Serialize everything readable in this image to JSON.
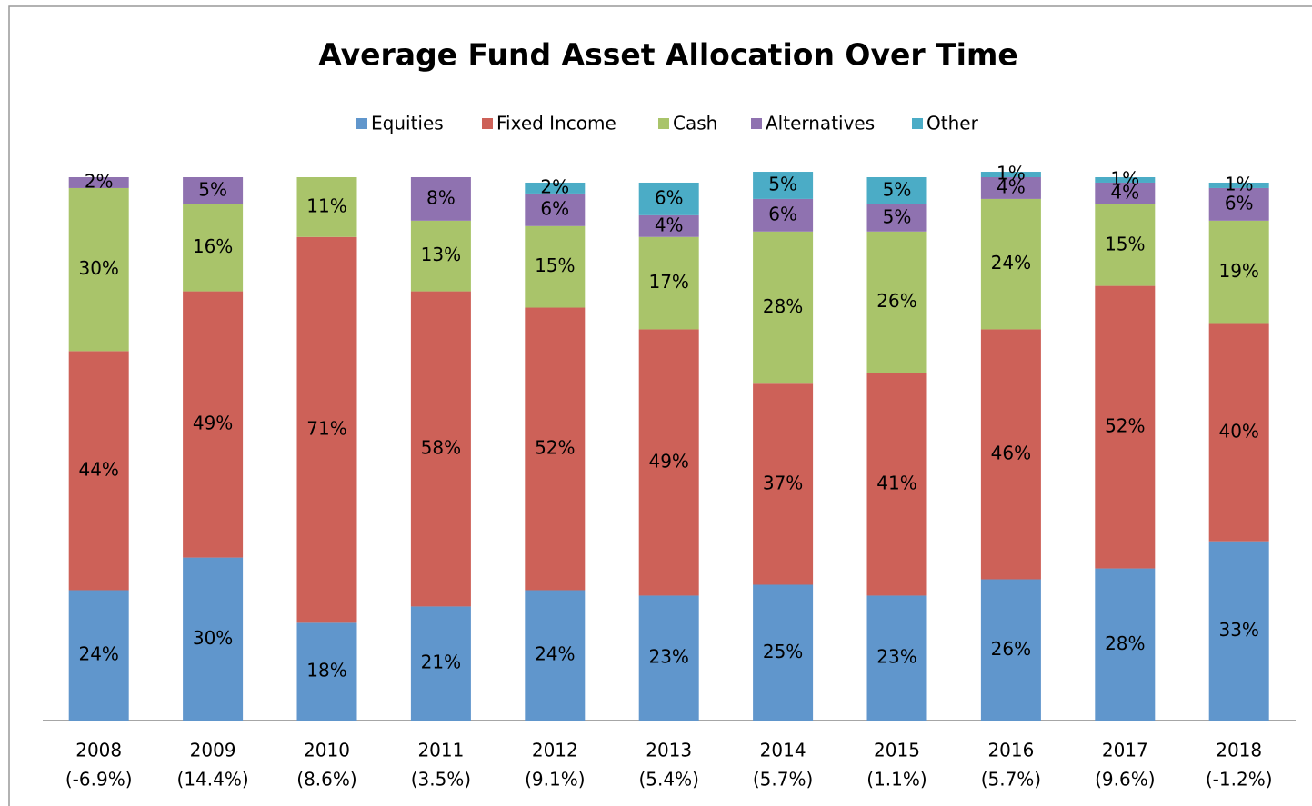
{
  "chart_data": {
    "type": "stacked_bar",
    "title": "Average Fund Asset Allocation Over Time",
    "categories": [
      "2008",
      "2009",
      "2010",
      "2011",
      "2012",
      "2013",
      "2014",
      "2015",
      "2016",
      "2017",
      "2018"
    ],
    "category_returns": [
      "(-6.9%)",
      "(14.4%)",
      "(8.6%)",
      "(3.5%)",
      "(9.1%)",
      "(5.4%)",
      "(5.7%)",
      "(1.1%)",
      "(5.7%)",
      "(9.6%)",
      "(-1.2%)"
    ],
    "series": [
      {
        "name": "Equities",
        "color": "#6096cc",
        "values": [
          24,
          30,
          18,
          21,
          24,
          23,
          25,
          23,
          26,
          28,
          33
        ],
        "value_labels": [
          "24%",
          "30%",
          "18%",
          "21%",
          "24%",
          "23%",
          "25%",
          "23%",
          "26%",
          "28%",
          "33%"
        ]
      },
      {
        "name": "Fixed Income",
        "color": "#cd6158",
        "values": [
          44,
          49,
          71,
          58,
          52,
          49,
          37,
          41,
          46,
          52,
          40
        ],
        "value_labels": [
          "44%",
          "49%",
          "71%",
          "58%",
          "52%",
          "49%",
          "37%",
          "41%",
          "46%",
          "52%",
          "40%"
        ]
      },
      {
        "name": "Cash",
        "color": "#a9c46a",
        "values": [
          30,
          16,
          11,
          13,
          15,
          17,
          28,
          26,
          24,
          15,
          19
        ],
        "value_labels": [
          "30%",
          "16%",
          "11%",
          "13%",
          "15%",
          "17%",
          "28%",
          "26%",
          "24%",
          "15%",
          "19%"
        ]
      },
      {
        "name": "Alternatives",
        "color": "#8f72b0",
        "values": [
          2,
          5,
          null,
          8,
          6,
          4,
          6,
          5,
          4,
          4,
          6
        ],
        "value_labels": [
          "2%",
          "5%",
          null,
          "8%",
          "6%",
          "4%",
          "6%",
          "5%",
          "4%",
          "4%",
          "6%"
        ]
      },
      {
        "name": "Other",
        "color": "#4bacc6",
        "values": [
          null,
          null,
          null,
          null,
          2,
          6,
          5,
          5,
          1,
          1,
          1
        ],
        "value_labels": [
          null,
          null,
          null,
          null,
          "2%",
          "6%",
          "5%",
          "5%",
          "1%",
          "1%",
          "1%"
        ]
      }
    ],
    "legend": "top"
  }
}
